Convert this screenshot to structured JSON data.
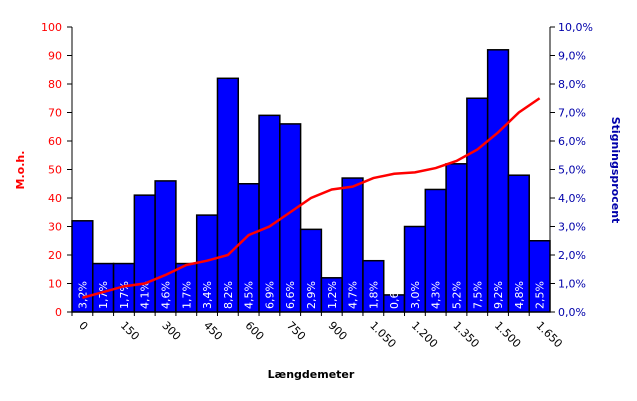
{
  "chart_data": {
    "type": "bar-line",
    "xlabel": "Længdemeter",
    "ylabel": "M.o.h.",
    "y2label": "Stigningsprocent",
    "categories": [
      "0",
      null,
      "150",
      null,
      "300",
      null,
      "450",
      null,
      "600",
      null,
      "750",
      null,
      "900",
      null,
      "1.050",
      null,
      "1.200",
      null,
      "1.350",
      null,
      "1.500",
      null,
      "1.650"
    ],
    "series": [
      {
        "type": "bar",
        "axis": "y2",
        "color": "#0000ff",
        "values": [
          3.2,
          1.7,
          1.7,
          4.1,
          4.6,
          1.7,
          3.4,
          8.2,
          4.5,
          6.9,
          6.6,
          2.9,
          1.2,
          4.7,
          1.8,
          0.6,
          3.0,
          4.3,
          5.2,
          7.5,
          9.2,
          4.8,
          2.5
        ],
        "value_labels": [
          "3,2%",
          "1,7%",
          "1,7%",
          "4,1%",
          "4,6%",
          "1,7%",
          "3,4%",
          "8,2%",
          "4,5%",
          "6,9%",
          "6,6%",
          "2,9%",
          "1,2%",
          "4,7%",
          "1,8%",
          "0,6%",
          "3,0%",
          "4,3%",
          "5,2%",
          "7,5%",
          "9,2%",
          "4,8%",
          "2,5%"
        ]
      },
      {
        "type": "line",
        "axis": "y",
        "color": "#ff0000",
        "values": [
          5,
          7,
          9,
          10,
          13,
          16.5,
          18,
          20,
          27,
          30,
          35,
          40,
          43,
          44,
          47,
          48.5,
          49,
          50.5,
          53,
          57,
          63,
          70,
          75
        ]
      }
    ],
    "ylim": [
      0,
      100
    ],
    "yticks": [
      0,
      10,
      20,
      30,
      40,
      50,
      60,
      70,
      80,
      90,
      100
    ],
    "y2lim": [
      0,
      10
    ],
    "y2ticks": [
      {
        "value": 0,
        "label": "0,0%"
      },
      {
        "value": 1,
        "label": "1,0%"
      },
      {
        "value": 2,
        "label": "2,0%"
      },
      {
        "value": 3,
        "label": "3,0%"
      },
      {
        "value": 4,
        "label": "4,0%"
      },
      {
        "value": 5,
        "label": "5,0%"
      },
      {
        "value": 6,
        "label": "6,0%"
      },
      {
        "value": 7,
        "label": "7,0%"
      },
      {
        "value": 8,
        "label": "8,0%"
      },
      {
        "value": 9,
        "label": "9,0%"
      },
      {
        "value": 10,
        "label": "10,0%"
      }
    ]
  }
}
